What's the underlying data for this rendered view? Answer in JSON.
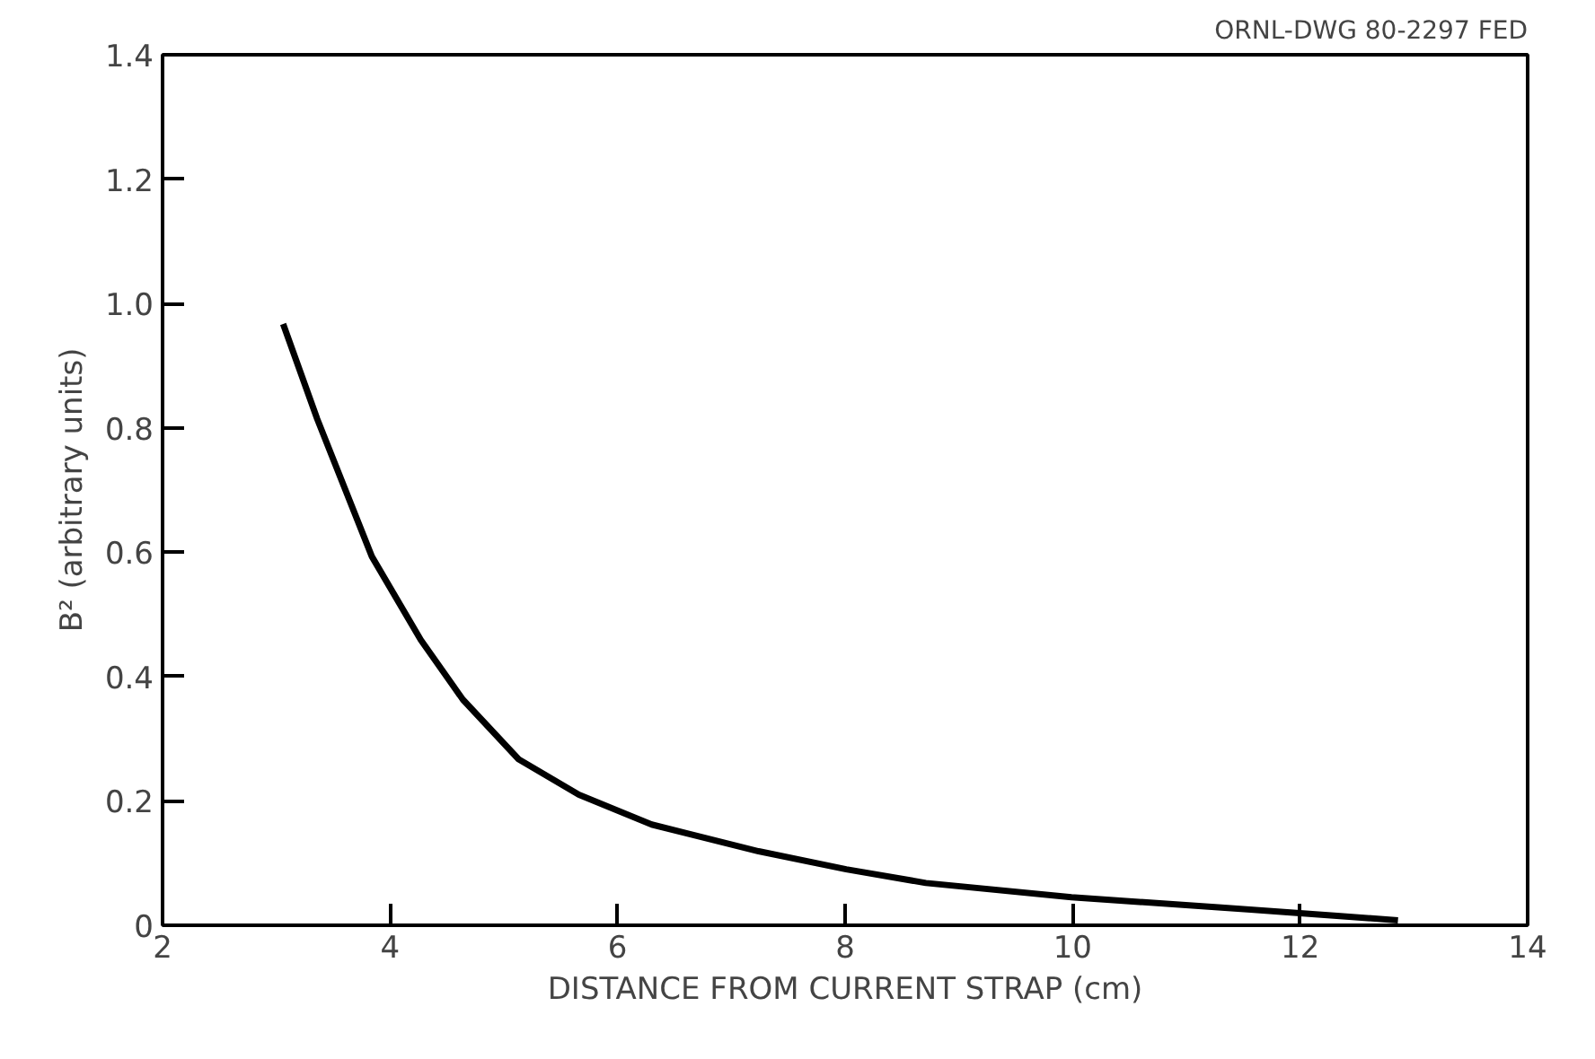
{
  "chart_data": {
    "type": "line",
    "xlabel": "DISTANCE FROM CURRENT STRAP (cm)",
    "ylabel": "B² (arbitrary units)",
    "annotations": [
      "ORNL-DWG 80-2297 FED"
    ],
    "x": [
      3.06,
      3.36,
      3.84,
      4.27,
      4.64,
      5.13,
      5.66,
      6.3,
      7.24,
      8.01,
      8.71,
      9.99,
      11.28,
      11.97,
      12.86
    ],
    "series": [
      {
        "color": "#000000",
        "values": [
          0.967,
          0.814,
          0.593,
          0.459,
          0.363,
          0.267,
          0.21,
          0.162,
          0.119,
          0.09,
          0.068,
          0.045,
          0.029,
          0.02,
          0.008
        ]
      }
    ],
    "xlim": [
      2,
      14
    ],
    "ylim": [
      0,
      1.4
    ],
    "xticks": [
      2,
      4,
      6,
      8,
      10,
      12,
      14
    ],
    "yticks": [
      {
        "value": 0,
        "label": "0"
      },
      0.2,
      0.4,
      0.6,
      0.8,
      {
        "value": 1.0,
        "label": "1.0"
      },
      1.2,
      1.4
    ],
    "grid": false,
    "marker": "none",
    "line_style": "solid"
  }
}
